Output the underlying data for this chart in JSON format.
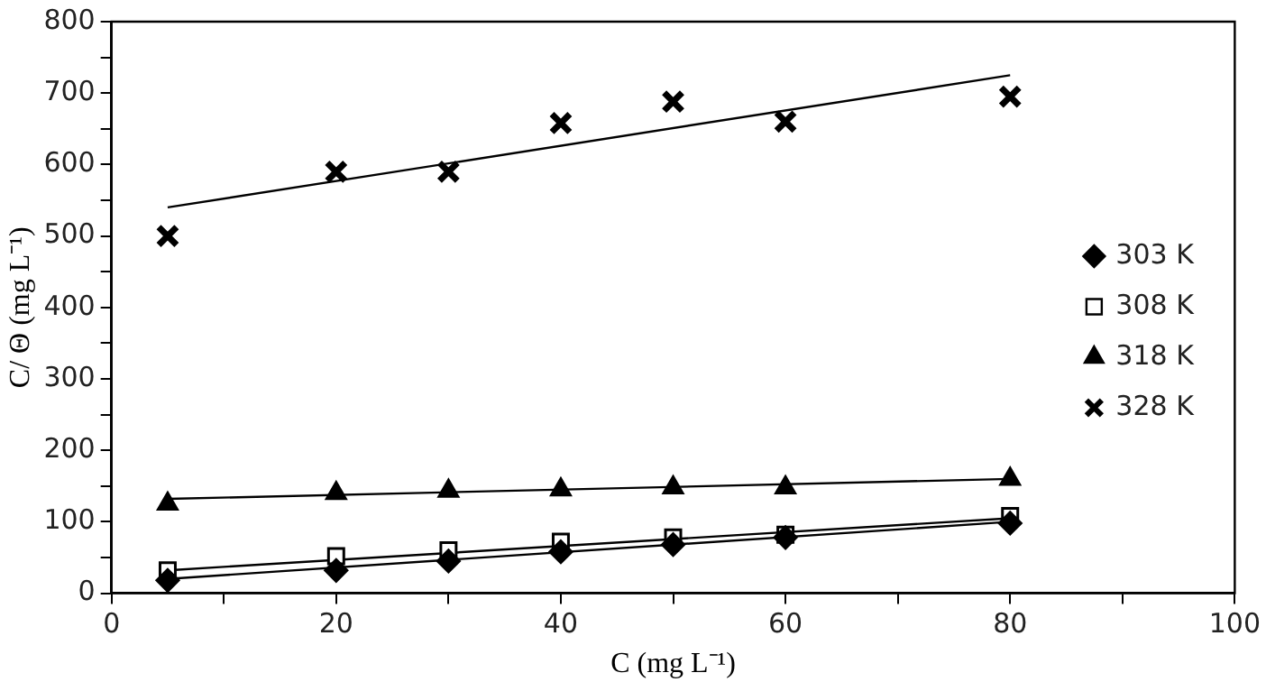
{
  "chart_data": {
    "type": "scatter",
    "xlabel": "C (mg L⁻¹)",
    "ylabel": "C/ Θ (mg L⁻¹)",
    "xlim": [
      0,
      100
    ],
    "ylim": [
      0,
      800
    ],
    "xticks": [
      0,
      {
        "value": 10,
        "label": null
      },
      20,
      {
        "value": 30,
        "label": null
      },
      40,
      {
        "value": 50,
        "label": null
      },
      60,
      {
        "value": 70,
        "label": null
      },
      80,
      {
        "value": 90,
        "label": null
      },
      100
    ],
    "yticks": [
      0,
      {
        "value": 50,
        "label": null
      },
      100,
      {
        "value": 150,
        "label": null
      },
      200,
      {
        "value": 250,
        "label": null
      },
      300,
      {
        "value": 350,
        "label": null
      },
      400,
      {
        "value": 450,
        "label": null
      },
      500,
      {
        "value": 550,
        "label": null
      },
      600,
      {
        "value": 650,
        "label": null
      },
      700,
      {
        "value": 750,
        "label": null
      },
      800
    ],
    "grid": false,
    "legend": "right",
    "series": [
      {
        "name": "303 K",
        "color": "#000000",
        "marker": "diamond",
        "x": [
          5,
          20,
          30,
          40,
          50,
          60,
          80
        ],
        "values": [
          18,
          32,
          45,
          58,
          68,
          78,
          98
        ]
      },
      {
        "name": "308 K",
        "color": "#000000",
        "marker": "square",
        "x": [
          5,
          20,
          30,
          40,
          50,
          60,
          80
        ],
        "values": [
          32,
          52,
          60,
          72,
          78,
          82,
          108
        ]
      },
      {
        "name": "318 K",
        "color": "#000000",
        "marker": "triangle",
        "x": [
          5,
          20,
          30,
          40,
          50,
          60,
          80
        ],
        "values": [
          125,
          140,
          143,
          145,
          148,
          148,
          160
        ]
      },
      {
        "name": "328 K",
        "color": "#000000",
        "marker": "cross",
        "x": [
          5,
          20,
          30,
          40,
          50,
          60,
          80
        ],
        "values": [
          500,
          590,
          590,
          658,
          688,
          660,
          695
        ]
      },
      {
        "type": "line",
        "color": "#000000",
        "marker": "none",
        "line_style": "solid",
        "x": [
          5,
          80
        ],
        "values": [
          20,
          100
        ]
      },
      {
        "type": "line",
        "color": "#000000",
        "marker": "none",
        "line_style": "solid",
        "x": [
          5,
          80
        ],
        "values": [
          32,
          105
        ]
      },
      {
        "type": "line",
        "color": "#000000",
        "marker": "none",
        "line_style": "solid",
        "x": [
          5,
          80
        ],
        "values": [
          132,
          160
        ]
      },
      {
        "type": "line",
        "color": "#000000",
        "marker": "none",
        "line_style": "solid",
        "x": [
          5,
          80
        ],
        "values": [
          540,
          725
        ]
      }
    ]
  }
}
